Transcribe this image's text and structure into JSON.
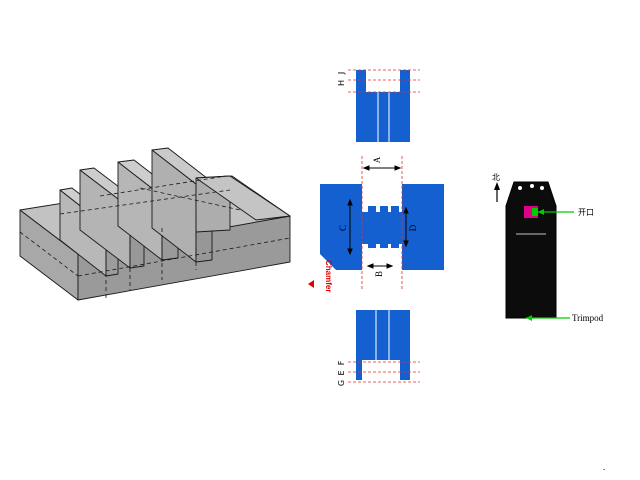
{
  "diagram": {
    "dimension_labels": {
      "A": "A",
      "B": "B",
      "C": "C",
      "D": "D",
      "E": "E",
      "F": "F",
      "G": "G",
      "H": "H",
      "J": "J"
    },
    "chamfer_label": "Chamfer",
    "north_label": "北",
    "opening_label": "开口",
    "trimpod_label": "Trimpod",
    "trailing_mark": ".",
    "colors": {
      "blue": "#1560d0",
      "red_dashed": "#e03030",
      "part_gray": "#b4b4b4",
      "body_black": "#0c0c0c",
      "green": "#00cc00",
      "magenta": "#e0008a"
    }
  }
}
